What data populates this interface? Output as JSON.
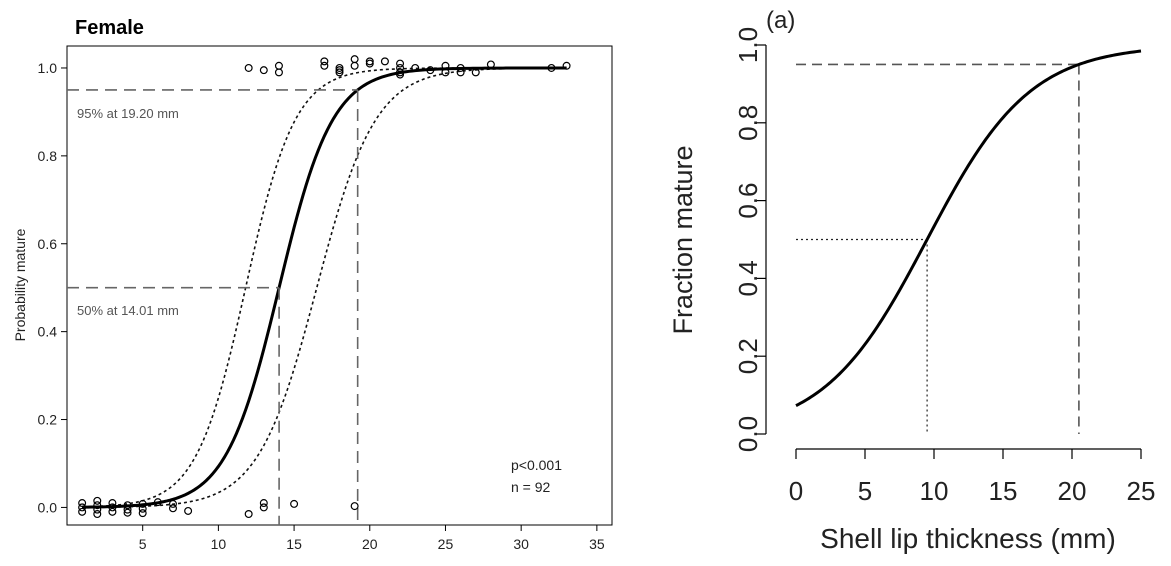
{
  "chart_data": [
    {
      "type": "scatter",
      "panel": "left",
      "title": "Female",
      "xlabel": "",
      "ylabel": "Probability mature",
      "xlim": [
        0,
        36
      ],
      "ylim": [
        0,
        1.05
      ],
      "xticks": [
        5,
        10,
        15,
        20,
        25,
        30,
        35
      ],
      "yticks": [
        0.0,
        0.2,
        0.4,
        0.6,
        0.8,
        1.0
      ],
      "ytick_labels": [
        "0.0",
        "0.2",
        "0.4",
        "0.6",
        "0.8",
        "1.0"
      ],
      "grid": false,
      "box": true,
      "curve": {
        "x50": 14.01,
        "x95": 19.2,
        "x_start": 1,
        "x_end": 33
      },
      "ci_lower": {
        "x50": 16.5,
        "x95": 22.2
      },
      "ci_upper": {
        "x50": 11.8,
        "x95": 16.6
      },
      "annotations": {
        "p95_label": "95% at 19.20 mm",
        "p50_label": "50% at 14.01 mm",
        "p_value": "p<0.001",
        "n_label": "n = 92"
      },
      "reference_lines": [
        {
          "p": 0.95,
          "x": 19.2
        },
        {
          "p": 0.5,
          "x": 14.01
        }
      ],
      "points": [
        [
          1,
          0.01
        ],
        [
          1,
          0.0
        ],
        [
          1,
          -0.01
        ],
        [
          2,
          0.015
        ],
        [
          2,
          0.005
        ],
        [
          2,
          -0.005
        ],
        [
          2,
          -0.015
        ],
        [
          3,
          0.01
        ],
        [
          3,
          0.0
        ],
        [
          3,
          -0.01
        ],
        [
          4,
          0.005
        ],
        [
          4,
          -0.005
        ],
        [
          4,
          -0.012
        ],
        [
          5,
          0.008
        ],
        [
          5,
          -0.003
        ],
        [
          5,
          -0.013
        ],
        [
          6,
          0.012
        ],
        [
          7,
          0.008
        ],
        [
          7,
          -0.002
        ],
        [
          8,
          -0.008
        ],
        [
          12,
          -0.015
        ],
        [
          13,
          0.01
        ],
        [
          13,
          0.0
        ],
        [
          15,
          0.008
        ],
        [
          19,
          0.003
        ],
        [
          12,
          1.0
        ],
        [
          13,
          0.995
        ],
        [
          14,
          0.99
        ],
        [
          14,
          1.005
        ],
        [
          17,
          1.015
        ],
        [
          17,
          1.005
        ],
        [
          18,
          0.995
        ],
        [
          18,
          1.0
        ],
        [
          18,
          0.99
        ],
        [
          19,
          1.02
        ],
        [
          19,
          1.005
        ],
        [
          20,
          1.015
        ],
        [
          20,
          1.01
        ],
        [
          21,
          1.015
        ],
        [
          22,
          1.01
        ],
        [
          22,
          1.0
        ],
        [
          22,
          0.99
        ],
        [
          22,
          0.985
        ],
        [
          23,
          1.0
        ],
        [
          24,
          0.995
        ],
        [
          25,
          1.005
        ],
        [
          25,
          0.99
        ],
        [
          26,
          1.0
        ],
        [
          26,
          0.99
        ],
        [
          27,
          0.99
        ],
        [
          28,
          1.008
        ],
        [
          32,
          1.0
        ],
        [
          33,
          1.005
        ]
      ]
    },
    {
      "type": "line",
      "panel": "right",
      "panel_label": "(a)",
      "xlabel": "Shell lip thickness (mm)",
      "ylabel": "Fraction mature",
      "xlim": [
        0,
        25
      ],
      "ylim": [
        0,
        1
      ],
      "xticks": [
        0,
        5,
        10,
        15,
        20,
        25
      ],
      "xtick_labels": [
        "0",
        "5",
        "10",
        "15",
        "20",
        "25"
      ],
      "yticks": [
        0.0,
        0.2,
        0.4,
        0.6,
        0.8,
        1.0
      ],
      "ytick_labels": [
        "0.0",
        "0.2",
        "0.4",
        "0.6",
        "0.8",
        "1.0"
      ],
      "grid": false,
      "box": false,
      "curve": {
        "x50": 9.5,
        "x95": 20.5,
        "x_start": 0,
        "x_end": 25
      },
      "reference_lines": [
        {
          "p": 0.5,
          "x": 9.5,
          "style": "dotted"
        },
        {
          "p": 0.95,
          "x": 20.5,
          "style": "dashed"
        }
      ]
    }
  ]
}
